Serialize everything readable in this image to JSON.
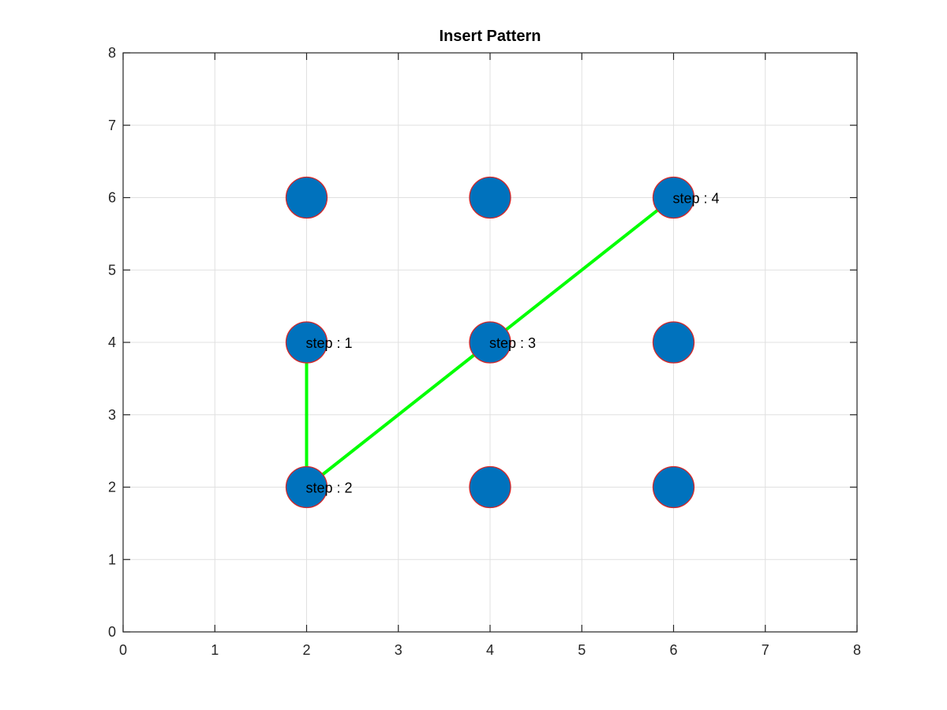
{
  "chart_data": {
    "type": "scatter",
    "title": "Insert Pattern",
    "xlabel": "",
    "ylabel": "",
    "xlim": [
      0,
      8
    ],
    "ylim": [
      0,
      8
    ],
    "xticks": [
      "0",
      "1",
      "2",
      "3",
      "4",
      "5",
      "6",
      "7",
      "8"
    ],
    "yticks": [
      "0",
      "1",
      "2",
      "3",
      "4",
      "5",
      "6",
      "7",
      "8"
    ],
    "grid": true,
    "points": [
      {
        "x": 2,
        "y": 2
      },
      {
        "x": 2,
        "y": 4
      },
      {
        "x": 2,
        "y": 6
      },
      {
        "x": 4,
        "y": 2
      },
      {
        "x": 4,
        "y": 4
      },
      {
        "x": 4,
        "y": 6
      },
      {
        "x": 6,
        "y": 2
      },
      {
        "x": 6,
        "y": 4
      },
      {
        "x": 6,
        "y": 6
      }
    ],
    "path": [
      {
        "x": 2,
        "y": 4
      },
      {
        "x": 2,
        "y": 2
      },
      {
        "x": 4,
        "y": 4
      },
      {
        "x": 6,
        "y": 6
      }
    ],
    "annotations": [
      {
        "x": 2,
        "y": 4,
        "text": "step : 1"
      },
      {
        "x": 2,
        "y": 2,
        "text": "step : 2"
      },
      {
        "x": 4,
        "y": 4,
        "text": "step : 3"
      },
      {
        "x": 6,
        "y": 6,
        "text": "step : 4"
      }
    ],
    "colors": {
      "marker_fill": "#0072BD",
      "marker_edge": "#D62728",
      "path": "#00FF00",
      "grid": "#E0E0E0",
      "axes": "#262626"
    }
  }
}
